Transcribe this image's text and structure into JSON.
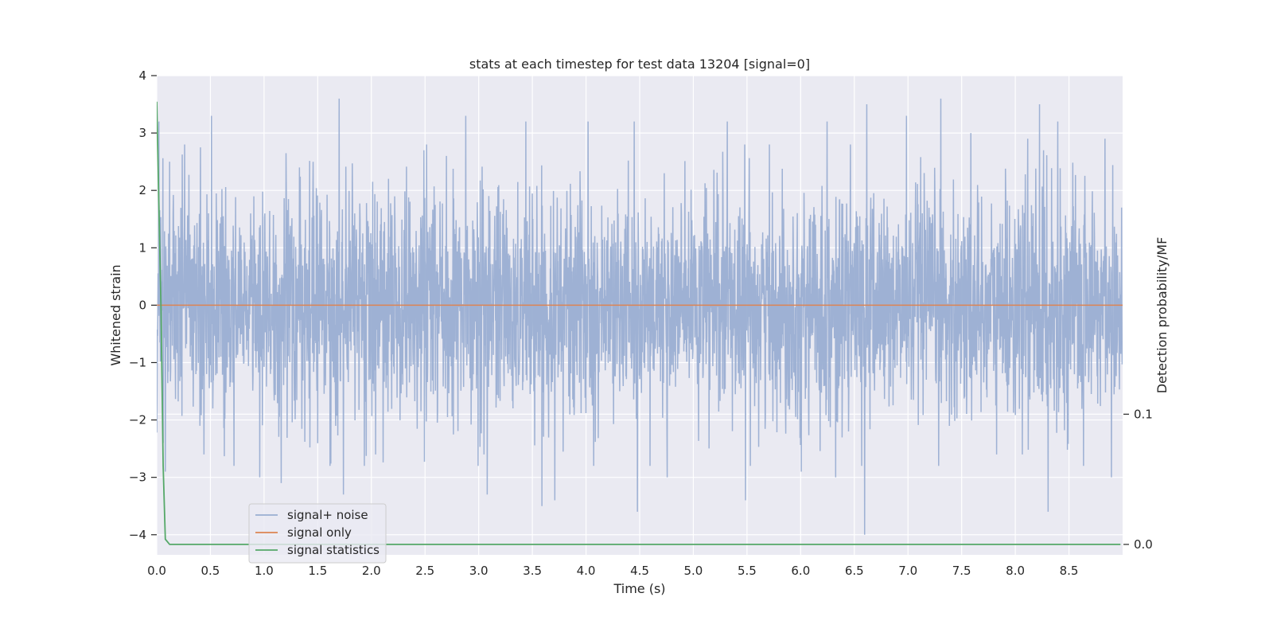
{
  "chart_data": {
    "type": "line",
    "title": "stats at each timestep for test data 13204 [signal=0]",
    "xlabel": "Time (s)",
    "ylabel": "Whitened strain",
    "y2label": "Detection probability/MF",
    "xlim": [
      0.0,
      9.0
    ],
    "ylim": [
      -4.35,
      4.0
    ],
    "y2lim": [
      -0.008,
      0.36
    ],
    "x_ticks": [
      "0.0",
      "0.5",
      "1.0",
      "1.5",
      "2.0",
      "2.5",
      "3.0",
      "3.5",
      "4.0",
      "4.5",
      "5.0",
      "5.5",
      "6.0",
      "6.5",
      "7.0",
      "7.5",
      "8.0",
      "8.5"
    ],
    "y_ticks": [
      "4",
      "3",
      "2",
      "1",
      "0",
      "−1",
      "−2",
      "−3",
      "−4"
    ],
    "y2_ticks": [
      "0.1",
      "0.0"
    ],
    "grid": true,
    "legend_position": "lower-left",
    "series": [
      {
        "name": "signal+ noise",
        "axis": "left",
        "color": "#9aaed2",
        "description_values": {
          "duration_s": 9.0,
          "typical_range": [
            -2.0,
            2.0
          ],
          "max_value": 3.6,
          "min_value": -4.0,
          "seed_points": [
            [
              0.02,
              3.2
            ],
            [
              0.06,
              -2.4
            ],
            [
              0.08,
              -2.9
            ],
            [
              0.12,
              2.5
            ],
            [
              0.26,
              2.8
            ],
            [
              0.44,
              -2.6
            ],
            [
              0.51,
              3.3
            ],
            [
              0.72,
              -2.8
            ],
            [
              0.96,
              -3.0
            ],
            [
              1.16,
              -3.1
            ],
            [
              1.33,
              2.4
            ],
            [
              1.7,
              3.6
            ],
            [
              1.74,
              -3.3
            ],
            [
              2.04,
              -2.6
            ],
            [
              2.49,
              2.7
            ],
            [
              2.7,
              2.6
            ],
            [
              2.88,
              3.3
            ],
            [
              3.05,
              -2.6
            ],
            [
              3.08,
              -3.3
            ],
            [
              3.44,
              3.2
            ],
            [
              3.59,
              -3.5
            ],
            [
              3.71,
              -3.4
            ],
            [
              4.02,
              3.2
            ],
            [
              4.45,
              3.2
            ],
            [
              4.48,
              -3.6
            ],
            [
              4.6,
              -2.8
            ],
            [
              4.76,
              -3.0
            ],
            [
              5.32,
              3.2
            ],
            [
              5.49,
              -3.4
            ],
            [
              6.01,
              -2.9
            ],
            [
              6.25,
              3.2
            ],
            [
              6.33,
              -3.0
            ],
            [
              6.62,
              3.5
            ],
            [
              6.6,
              -4.0
            ],
            [
              6.99,
              3.3
            ],
            [
              7.31,
              3.6
            ],
            [
              7.59,
              3.0
            ],
            [
              7.83,
              -2.6
            ],
            [
              8.07,
              -2.6
            ],
            [
              8.12,
              2.9
            ],
            [
              8.23,
              3.5
            ],
            [
              8.31,
              -3.6
            ],
            [
              8.4,
              3.2
            ],
            [
              8.64,
              -2.8
            ],
            [
              8.84,
              2.9
            ],
            [
              8.9,
              -3.0
            ]
          ]
        }
      },
      {
        "name": "signal only",
        "axis": "left",
        "color": "#dd8452",
        "x": [
          0.0,
          9.0
        ],
        "y": [
          0.0,
          0.0
        ]
      },
      {
        "name": "signal statistics",
        "axis": "right",
        "color": "#55a868",
        "x": [
          0.0,
          0.02,
          0.04,
          0.06,
          0.08,
          0.12,
          0.3,
          1.0,
          3.0,
          6.0,
          8.98
        ],
        "y": [
          0.34,
          0.26,
          0.18,
          0.06,
          0.004,
          0.0,
          0.0,
          0.0,
          0.0,
          0.0,
          0.0
        ]
      }
    ]
  },
  "colors": {
    "plot_background": "#eaeaf2",
    "grid": "#ffffff",
    "text": "#262626"
  }
}
